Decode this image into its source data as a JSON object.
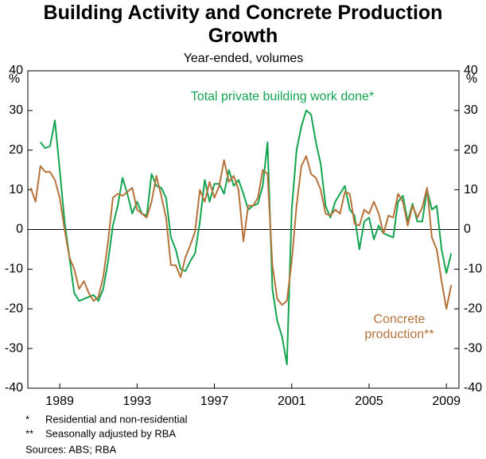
{
  "chart_data": {
    "type": "line",
    "title": "Building Activity and Concrete Production Growth",
    "subtitle": "Year-ended, volumes",
    "y_unit": "%",
    "y2_unit": "%",
    "x": [
      1987.5,
      1987.75,
      1988,
      1988.25,
      1988.5,
      1988.75,
      1989,
      1989.25,
      1989.5,
      1989.75,
      1990,
      1990.25,
      1990.5,
      1990.75,
      1991,
      1991.25,
      1991.5,
      1991.75,
      1992,
      1992.25,
      1992.5,
      1992.75,
      1993,
      1993.25,
      1993.5,
      1993.75,
      1994,
      1994.25,
      1994.5,
      1994.75,
      1995,
      1995.25,
      1995.5,
      1995.75,
      1996,
      1996.25,
      1996.5,
      1996.75,
      1997,
      1997.25,
      1997.5,
      1997.75,
      1998,
      1998.25,
      1998.5,
      1998.75,
      1999,
      1999.25,
      1999.5,
      1999.75,
      2000,
      2000.25,
      2000.5,
      2000.75,
      2001,
      2001.25,
      2001.5,
      2001.75,
      2002,
      2002.25,
      2002.5,
      2002.75,
      2003,
      2003.25,
      2003.5,
      2003.75,
      2004,
      2004.25,
      2004.5,
      2004.75,
      2005,
      2005.25,
      2005.5,
      2005.75,
      2006,
      2006.25,
      2006.5,
      2006.75,
      2007,
      2007.25,
      2007.5,
      2007.75,
      2008,
      2008.25,
      2008.5,
      2008.75,
      2009,
      2009.25
    ],
    "series": [
      {
        "name": "Total private building work done*",
        "color": "#13a450",
        "values": [
          null,
          null,
          22,
          20.5,
          21,
          27.5,
          15,
          2,
          -7,
          -16,
          -18,
          -17.5,
          -17,
          -16.5,
          -18,
          -15,
          -8,
          1,
          6,
          13,
          9,
          4,
          7,
          4,
          3.5,
          14,
          11,
          10.5,
          8,
          -2,
          -5,
          -10,
          -10.5,
          -8,
          -6,
          2,
          12.5,
          7,
          11.5,
          11.5,
          9,
          15,
          11,
          12.5,
          9,
          5,
          6,
          6.5,
          11,
          22,
          -15,
          -23,
          -27,
          -34,
          5,
          20,
          26,
          30,
          29,
          22,
          16.5,
          6,
          3,
          7,
          9,
          11,
          5,
          3.5,
          -5,
          2,
          3,
          -2.5,
          1,
          -1,
          -1.5,
          -2,
          7,
          8.5,
          2,
          6.5,
          2,
          2,
          10,
          5,
          6,
          -5,
          -11,
          -6
        ]
      },
      {
        "name": "Concrete production**",
        "color": "#b5733b",
        "values": [
          10.5,
          7,
          16,
          14.5,
          14.5,
          12.5,
          8,
          0,
          -7,
          -10,
          -15,
          -13,
          -16,
          -18,
          -17,
          -12,
          -3,
          8,
          9,
          8.5,
          9.5,
          10.5,
          5,
          4,
          3,
          7,
          13.5,
          8.5,
          3,
          -9,
          -9,
          -12,
          -7,
          -4,
          -0.5,
          10,
          7,
          12,
          8,
          11,
          17.5,
          12,
          13.5,
          10,
          -3,
          6,
          6,
          8,
          15,
          14,
          -9,
          -17.5,
          -19,
          -18,
          -8,
          6,
          16,
          18.5,
          14,
          13,
          10,
          4,
          3.5,
          5,
          4,
          9.5,
          9,
          1.5,
          1,
          5,
          4,
          7,
          4,
          -1,
          3.5,
          3,
          9,
          7,
          1,
          6,
          3,
          5.5,
          10.5,
          -2,
          -5,
          -13,
          -20,
          -14
        ]
      }
    ],
    "xlim": [
      1987.35,
      2009.65
    ],
    "xticks": [
      1989,
      1993,
      1997,
      2001,
      2005,
      2009
    ],
    "ylim": [
      -40,
      40
    ],
    "yticks": [
      -40,
      -30,
      -20,
      -10,
      0,
      10,
      20,
      30,
      40
    ],
    "y2lim": [
      -40,
      40
    ],
    "y2ticks": [
      -40,
      -30,
      -20,
      -10,
      0,
      10,
      20,
      30,
      40
    ],
    "notes": [
      {
        "mark": "*",
        "text": "Residential and non-residential"
      },
      {
        "mark": "**",
        "text": "Seasonally adjusted by RBA"
      }
    ],
    "sources": "Sources: ABS; RBA"
  }
}
